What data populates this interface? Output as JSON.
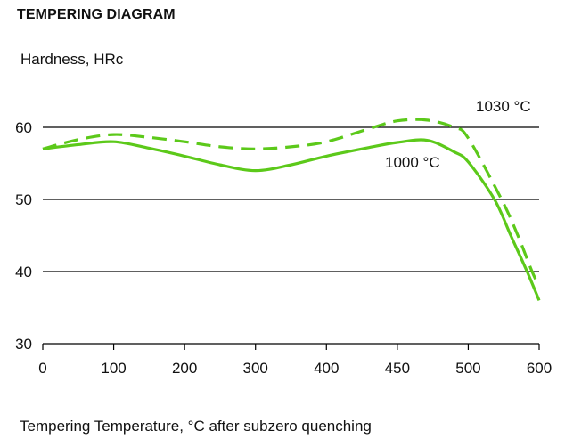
{
  "chart_data": {
    "type": "line",
    "title": "TEMPERING DIAGRAM",
    "ylabel": "Hardness, HRc",
    "xlabel": "Tempering Temperature, °C after subzero quenching",
    "x_ticks": [
      0,
      100,
      200,
      300,
      400,
      450,
      500,
      600
    ],
    "x_tick_labels": [
      "0",
      "100",
      "200",
      "300",
      "400",
      "450",
      "500",
      "600"
    ],
    "x_axis_note": "tick labels equally spaced (non-linear scale)",
    "y_ticks": [
      30,
      40,
      50,
      60
    ],
    "y_tick_labels": [
      "30",
      "40",
      "50",
      "60"
    ],
    "ylim": [
      30,
      60
    ],
    "grid": "horizontal at 40, 50, 60",
    "line_color": "#5cc91a",
    "series": [
      {
        "name": "1000 °C",
        "style": "solid",
        "label_position": "below-right",
        "points": [
          [
            0,
            57
          ],
          [
            50,
            57.6
          ],
          [
            100,
            58
          ],
          [
            150,
            57.1
          ],
          [
            200,
            56
          ],
          [
            250,
            54.8
          ],
          [
            300,
            54
          ],
          [
            350,
            54.8
          ],
          [
            400,
            56
          ],
          [
            430,
            57.2
          ],
          [
            450,
            57.9
          ],
          [
            471,
            58.2
          ],
          [
            490,
            56.6
          ],
          [
            500,
            55.2
          ],
          [
            537,
            50
          ],
          [
            560,
            45
          ],
          [
            583,
            40
          ],
          [
            600,
            36
          ]
        ]
      },
      {
        "name": "1030 °C",
        "style": "dashed",
        "label_position": "top-right",
        "points": [
          [
            0,
            57
          ],
          [
            50,
            58.3
          ],
          [
            100,
            59
          ],
          [
            150,
            58.6
          ],
          [
            200,
            58
          ],
          [
            250,
            57.3
          ],
          [
            300,
            57
          ],
          [
            350,
            57.3
          ],
          [
            400,
            58
          ],
          [
            430,
            59.8
          ],
          [
            450,
            60.9
          ],
          [
            471,
            61
          ],
          [
            490,
            60
          ],
          [
            500,
            58.5
          ],
          [
            547,
            50
          ],
          [
            570,
            45
          ],
          [
            590,
            40
          ],
          [
            600,
            38
          ]
        ]
      }
    ]
  }
}
